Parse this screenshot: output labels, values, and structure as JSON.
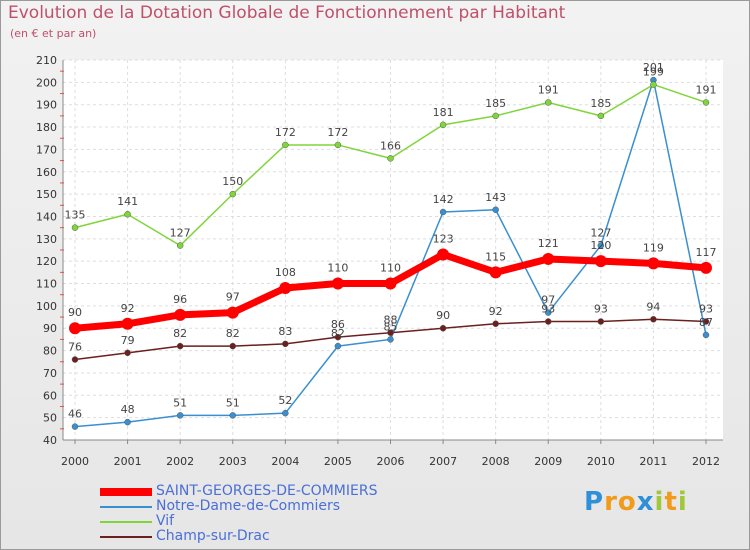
{
  "chart_data": {
    "type": "line",
    "title": "Evolution de la Dotation Globale de Fonctionnement par Habitant",
    "subtitle": "(en € et par an)",
    "x": [
      "2000",
      "2001",
      "2002",
      "2003",
      "2004",
      "2005",
      "2006",
      "2007",
      "2008",
      "2009",
      "2010",
      "2011",
      "2012"
    ],
    "ylim": [
      40,
      210
    ],
    "yticks": [
      40,
      50,
      60,
      70,
      80,
      90,
      100,
      110,
      120,
      130,
      140,
      150,
      160,
      170,
      180,
      190,
      200,
      210
    ],
    "grid": true,
    "legend_position": "bottom-left",
    "series": [
      {
        "name": "SAINT-GEORGES-DE-COMMIERS",
        "color": "#ff0000",
        "values": [
          90,
          92,
          96,
          97,
          108,
          110,
          110,
          123,
          115,
          121,
          120,
          119,
          117
        ]
      },
      {
        "name": "Notre-Dame-de-Commiers",
        "color": "#3a8fd0",
        "values": [
          46,
          48,
          51,
          51,
          52,
          82,
          85,
          142,
          143,
          97,
          127,
          201,
          87
        ]
      },
      {
        "name": "Vif",
        "color": "#7ed63a",
        "values": [
          135,
          141,
          127,
          150,
          172,
          172,
          166,
          181,
          185,
          191,
          185,
          199,
          191
        ]
      },
      {
        "name": "Champ-sur-Drac",
        "color": "#6b1f1f",
        "values": [
          76,
          79,
          82,
          82,
          83,
          86,
          88,
          90,
          92,
          93,
          93,
          94,
          93
        ]
      }
    ]
  },
  "logo": {
    "text": "Proxiti",
    "letters": [
      "P",
      "r",
      "o",
      "x",
      "i",
      "t",
      "i"
    ],
    "colors": [
      "#2f8fd8",
      "#f29a1a",
      "#f29a1a",
      "#2f8fd8",
      "#a0c83a",
      "#f29a1a",
      "#a0c83a"
    ]
  }
}
